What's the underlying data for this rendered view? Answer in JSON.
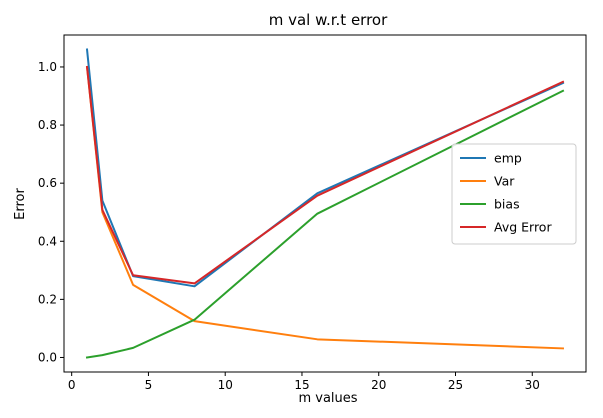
{
  "chart_data": {
    "type": "line",
    "title": "m val w.r.t error",
    "xlabel": "m values",
    "ylabel": "Error",
    "xlim": [
      -0.5,
      33.5
    ],
    "ylim": [
      -0.05,
      1.11
    ],
    "xticks": [
      0,
      5,
      10,
      15,
      20,
      25,
      30
    ],
    "yticks": [
      0.0,
      0.2,
      0.4,
      0.6,
      0.8,
      1.0
    ],
    "xtick_labels": [
      "0",
      "5",
      "10",
      "15",
      "20",
      "25",
      "30"
    ],
    "ytick_labels": [
      "0.0",
      "0.2",
      "0.4",
      "0.6",
      "0.8",
      "1.0"
    ],
    "grid": false,
    "legend_position": "center-right",
    "x": [
      1,
      2,
      4,
      8,
      16,
      32
    ],
    "series": [
      {
        "name": "emp",
        "color": "#1f77b4",
        "values": [
          1.06,
          0.54,
          0.28,
          0.245,
          0.565,
          0.945
        ]
      },
      {
        "name": "Var",
        "color": "#ff7f0e",
        "values": [
          1.0,
          0.5,
          0.25,
          0.125,
          0.0625,
          0.03125
        ]
      },
      {
        "name": "bias",
        "color": "#2ca02c",
        "values": [
          0.0,
          0.008,
          0.033,
          0.13,
          0.495,
          0.918
        ]
      },
      {
        "name": "Avg Error",
        "color": "#d62728",
        "values": [
          1.0,
          0.508,
          0.283,
          0.255,
          0.557,
          0.949
        ]
      }
    ]
  }
}
